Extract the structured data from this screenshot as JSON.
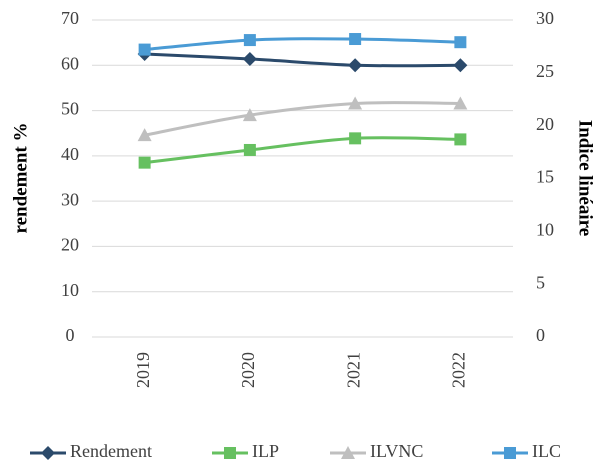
{
  "chart_data": {
    "type": "line",
    "categories": [
      "2019",
      "2020",
      "2021",
      "2022"
    ],
    "y_label": "rendement %",
    "y2_label": "Indice linéaire",
    "ylim": [
      0,
      70
    ],
    "yticks": [
      0,
      10,
      20,
      30,
      40,
      50,
      60,
      70
    ],
    "y2lim": [
      0,
      30
    ],
    "y2ticks": [
      0,
      5,
      10,
      15,
      20,
      25,
      30
    ],
    "grid": true,
    "legend": "bottom",
    "series": [
      {
        "name": "Rendement",
        "color": "#2b4a6b",
        "marker": "diamond",
        "values": [
          62.5,
          61.4,
          60.0,
          60.0
        ]
      },
      {
        "name": "ILP",
        "color": "#66c060",
        "marker": "square",
        "axis": "y2",
        "values": [
          16.5,
          17.7,
          18.8,
          18.7
        ]
      },
      {
        "name": "ILVNC",
        "color": "#bfbfbf",
        "marker": "triangle",
        "axis": "y2",
        "values": [
          19.1,
          21.0,
          22.1,
          22.1
        ]
      },
      {
        "name": "ILC",
        "color": "#4a9bd5",
        "marker": "square",
        "axis": "y2",
        "values": [
          27.2,
          28.1,
          28.2,
          27.9
        ]
      }
    ]
  }
}
